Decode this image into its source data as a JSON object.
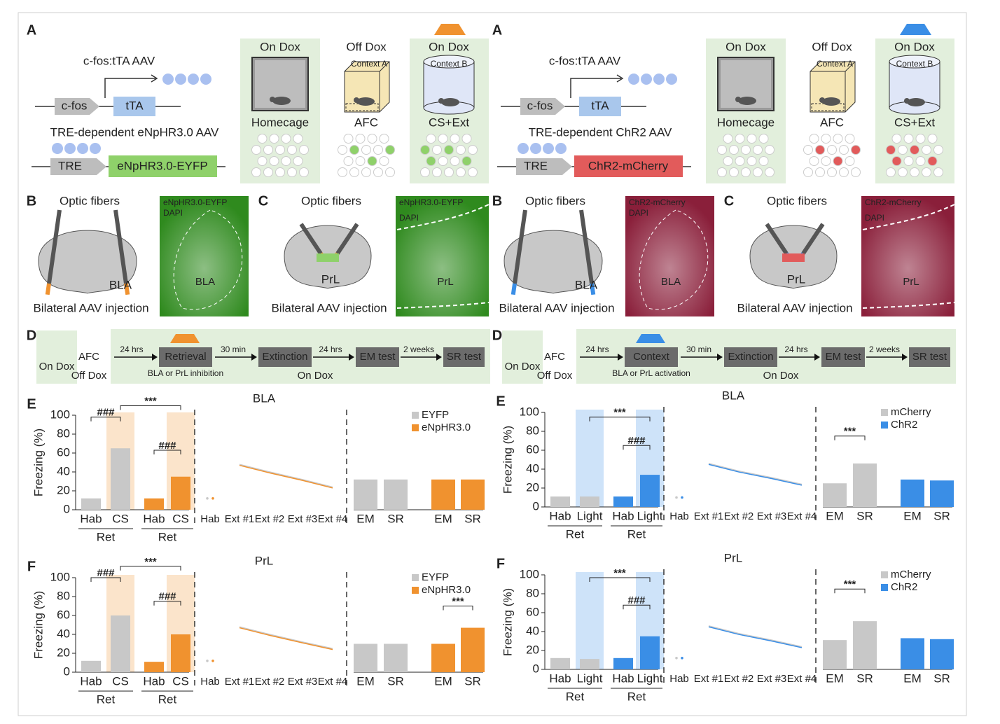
{
  "figures": [
    {
      "a": {
        "label": "A",
        "vector1": "c-fos:tTA AAV",
        "promoter1": "c-fos",
        "gene1": "tTA",
        "vector2": "TRE-dependent eNpHR3.0 AAV",
        "promoter2": "TRE",
        "gene2": "eNpHR3.0-EYFP",
        "gene_color": "#8fd16a",
        "light_color": "#f0922f",
        "stages": [
          {
            "dox": "On Dox",
            "name": "Homecage"
          },
          {
            "dox": "Off Dox",
            "context": "Context A",
            "name": "AFC"
          },
          {
            "dox": "On Dox",
            "context": "Context B",
            "name": "CS+Ext"
          }
        ]
      },
      "b": {
        "label": "B",
        "fibers": "Optic fibers",
        "region": "BLA",
        "injection": "Bilateral AAV injection",
        "stain": "eNpHR3.0-EYFP",
        "counter": "DAPI",
        "image_region": "BLA",
        "image_color": "#2f8a1e"
      },
      "c": {
        "label": "C",
        "fibers": "Optic fibers",
        "region": "PrL",
        "injection": "Bilateral AAV injection",
        "stain": "eNpHR3.0-EYFP",
        "counter": "DAPI",
        "image_region": "PrL",
        "image_color": "#2f8a1e"
      },
      "d": {
        "label": "D",
        "start": "On Dox",
        "training": "AFC",
        "training_dox": "Off Dox",
        "steps": [
          {
            "interval": "24 hrs",
            "name": "Retrieval"
          },
          {
            "interval": "30 min",
            "name": "Extinction"
          },
          {
            "interval": "24 hrs",
            "name": "EM test"
          },
          {
            "interval": "2 weeks",
            "name": "SR test"
          }
        ],
        "manipulation": "BLA or PrL inhibition",
        "end_dox": "On Dox"
      }
    },
    {
      "a": {
        "label": "A",
        "vector1": "c-fos:tTA AAV",
        "promoter1": "c-fos",
        "gene1": "tTA",
        "vector2": "TRE-dependent ChR2 AAV",
        "promoter2": "TRE",
        "gene2": "ChR2-mCherry",
        "gene_color": "#e25b5b",
        "light_color": "#3a8ee6",
        "stages": [
          {
            "dox": "On Dox",
            "name": "Homecage"
          },
          {
            "dox": "Off Dox",
            "context": "Context A",
            "name": "AFC"
          },
          {
            "dox": "On Dox",
            "context": "Context B",
            "name": "CS+Ext"
          }
        ]
      },
      "b": {
        "label": "B",
        "fibers": "Optic fibers",
        "region": "BLA",
        "injection": "Bilateral AAV injection",
        "stain": "ChR2-mCherry",
        "counter": "DAPI",
        "image_region": "BLA",
        "image_color": "#8a1f3a"
      },
      "c": {
        "label": "C",
        "fibers": "Optic fibers",
        "region": "PrL",
        "injection": "Bilateral AAV injection",
        "stain": "ChR2-mCherry",
        "counter": "DAPI",
        "image_region": "PrL",
        "image_color": "#8a1f3a"
      },
      "d": {
        "label": "D",
        "start": "On Dox",
        "training": "AFC",
        "training_dox": "Off Dox",
        "steps": [
          {
            "interval": "24 hrs",
            "name": "Context"
          },
          {
            "interval": "30 min",
            "name": "Extinction"
          },
          {
            "interval": "24 hrs",
            "name": "EM test"
          },
          {
            "interval": "2 weeks",
            "name": "SR test"
          }
        ],
        "manipulation": "BLA or PrL activation",
        "end_dox": "On Dox"
      }
    }
  ],
  "chart_data": [
    {
      "type": "bar",
      "panel": "E",
      "title": "BLA",
      "ylabel": "Freezing (%)",
      "ylim": [
        0,
        100
      ],
      "yticks": [
        0,
        20,
        40,
        60,
        80,
        100
      ],
      "highlight_color": "#f0922f",
      "ret_categories": [
        "Hab",
        "CS"
      ],
      "ret_label": "Ret",
      "ext_categories": [
        "Hab",
        "Ext #1",
        "Ext #2",
        "Ext #3",
        "Ext #4"
      ],
      "test_categories": [
        "EM",
        "SR"
      ],
      "annotations": [
        "###",
        "***",
        "###"
      ],
      "series": [
        {
          "name": "EYFP",
          "color": "#c8c8c8",
          "ret_values": [
            12,
            65
          ],
          "ext_values": [
            12,
            48,
            40,
            32,
            24
          ],
          "test_values": [
            32,
            32
          ]
        },
        {
          "name": "eNpHR3.0",
          "color": "#f0922f",
          "ret_values": [
            12,
            35
          ],
          "ext_values": [
            12,
            47,
            39,
            31,
            23
          ],
          "test_values": [
            32,
            32
          ]
        }
      ]
    },
    {
      "type": "bar",
      "panel": "F",
      "title": "PrL",
      "ylabel": "Freezing (%)",
      "ylim": [
        0,
        100
      ],
      "yticks": [
        0,
        20,
        40,
        60,
        80,
        100
      ],
      "highlight_color": "#f0922f",
      "ret_categories": [
        "Hab",
        "CS"
      ],
      "ret_label": "Ret",
      "ext_categories": [
        "Hab",
        "Ext #1",
        "Ext #2",
        "Ext #3",
        "Ext #4"
      ],
      "test_categories": [
        "EM",
        "SR"
      ],
      "annotations": [
        "###",
        "***",
        "###",
        "***"
      ],
      "series": [
        {
          "name": "EYFP",
          "color": "#c8c8c8",
          "ret_values": [
            12,
            60
          ],
          "ext_values": [
            12,
            48,
            40,
            32,
            25
          ],
          "test_values": [
            30,
            30
          ]
        },
        {
          "name": "eNpHR3.0",
          "color": "#f0922f",
          "ret_values": [
            11,
            40
          ],
          "ext_values": [
            12,
            47,
            39,
            31,
            24
          ],
          "test_values": [
            30,
            47
          ]
        }
      ]
    },
    {
      "type": "bar",
      "panel": "E",
      "title": "BLA",
      "ylabel": "Freezing (%)",
      "ylim": [
        0,
        100
      ],
      "yticks": [
        0,
        20,
        40,
        60,
        80,
        100
      ],
      "highlight_color": "#3a8ee6",
      "ret_categories": [
        "Hab",
        "Light"
      ],
      "ret_label": "Ret",
      "ext_categories": [
        "Hab",
        "Ext #1",
        "Ext #2",
        "Ext #3",
        "Ext #4"
      ],
      "test_categories": [
        "EM",
        "SR"
      ],
      "annotations": [
        "***",
        "###",
        "***"
      ],
      "series": [
        {
          "name": "mCherry",
          "color": "#c8c8c8",
          "ret_values": [
            11,
            11
          ],
          "ext_values": [
            10,
            46,
            38,
            31,
            24
          ],
          "test_values": [
            25,
            46
          ]
        },
        {
          "name": "ChR2",
          "color": "#3a8ee6",
          "ret_values": [
            11,
            34
          ],
          "ext_values": [
            10,
            45,
            37,
            30,
            23
          ],
          "test_values": [
            29,
            28
          ]
        }
      ]
    },
    {
      "type": "bar",
      "panel": "F",
      "title": "PrL",
      "ylabel": "Freezing (%)",
      "ylim": [
        0,
        100
      ],
      "yticks": [
        0,
        20,
        40,
        60,
        80,
        100
      ],
      "highlight_color": "#3a8ee6",
      "ret_categories": [
        "Hab",
        "Light"
      ],
      "ret_label": "Ret",
      "ext_categories": [
        "Hab",
        "Ext #1",
        "Ext #2",
        "Ext #3",
        "Ext #4"
      ],
      "test_categories": [
        "EM",
        "SR"
      ],
      "annotations": [
        "***",
        "###",
        "***"
      ],
      "series": [
        {
          "name": "mCherry",
          "color": "#c8c8c8",
          "ret_values": [
            12,
            11
          ],
          "ext_values": [
            12,
            46,
            38,
            31,
            24
          ],
          "test_values": [
            31,
            51
          ]
        },
        {
          "name": "ChR2",
          "color": "#3a8ee6",
          "ret_values": [
            12,
            35
          ],
          "ext_values": [
            12,
            45,
            37,
            30,
            23
          ],
          "test_values": [
            33,
            32
          ]
        }
      ]
    }
  ]
}
